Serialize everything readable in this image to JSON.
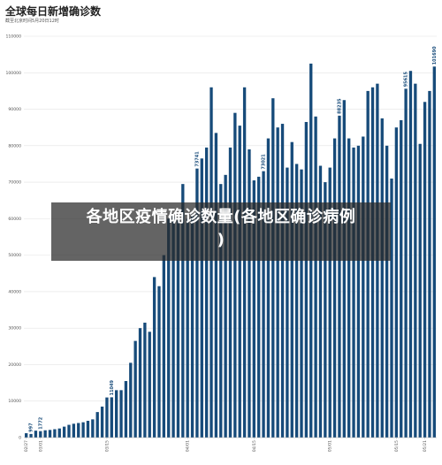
{
  "chart_data": {
    "type": "bar",
    "title": "全球每日新增确诊数",
    "subtitle": "截至北京时间5月20日12时",
    "xlabel": "",
    "ylabel": "",
    "ylim": [
      0,
      110000
    ],
    "y_ticks": [
      0,
      10000,
      20000,
      30000,
      40000,
      50000,
      60000,
      70000,
      80000,
      90000,
      100000,
      110000
    ],
    "y_tick_labels": [
      "0",
      "10000",
      "20000",
      "30000",
      "40000",
      "50000",
      "60000",
      "70000",
      "80000",
      "90000",
      "100000",
      "110000"
    ],
    "x_tick_labels": [
      {
        "index": 0,
        "label": "02/27"
      },
      {
        "index": 3,
        "label": "03/01"
      },
      {
        "index": 17,
        "label": "03/15"
      },
      {
        "index": 34,
        "label": "04/01"
      },
      {
        "index": 48,
        "label": "04/15"
      },
      {
        "index": 64,
        "label": "05/01"
      },
      {
        "index": 78,
        "label": "05/15"
      },
      {
        "index": 84,
        "label": "05/21"
      }
    ],
    "bar_color": "#174b7a",
    "values": [
      1200,
      997,
      1900,
      1772,
      2000,
      2100,
      2300,
      2500,
      3000,
      3500,
      3800,
      4000,
      4200,
      4600,
      5000,
      7000,
      8500,
      11000,
      11049,
      13000,
      13000,
      15500,
      20500,
      26500,
      30000,
      31500,
      29000,
      44000,
      41500,
      50000,
      60000,
      60500,
      59500,
      69500,
      60000,
      61000,
      73741,
      76500,
      79500,
      96000,
      83500,
      69500,
      72000,
      79500,
      89000,
      85500,
      96000,
      79000,
      70500,
      71500,
      73021,
      82000,
      93000,
      85000,
      86000,
      74000,
      81000,
      75000,
      73500,
      86500,
      102500,
      88000,
      74500,
      70000,
      74000,
      82000,
      88235,
      92500,
      82000,
      79500,
      80000,
      82500,
      95000,
      96000,
      97000,
      87500,
      80000,
      71000,
      85000,
      87000,
      95615,
      100500,
      97000,
      80500,
      92000,
      95000,
      101690
    ],
    "data_labels": [
      {
        "index": 1,
        "label": "997"
      },
      {
        "index": 3,
        "label": "1772"
      },
      {
        "index": 18,
        "label": "11049"
      },
      {
        "index": 36,
        "label": "73741"
      },
      {
        "index": 50,
        "label": "73021"
      },
      {
        "index": 66,
        "label": "88235"
      },
      {
        "index": 80,
        "label": "95615"
      },
      {
        "index": 86,
        "label": "101690"
      }
    ]
  },
  "overlay": {
    "line1": "各地区疫情确诊数量(各地区确诊病例",
    "line2": ")"
  }
}
